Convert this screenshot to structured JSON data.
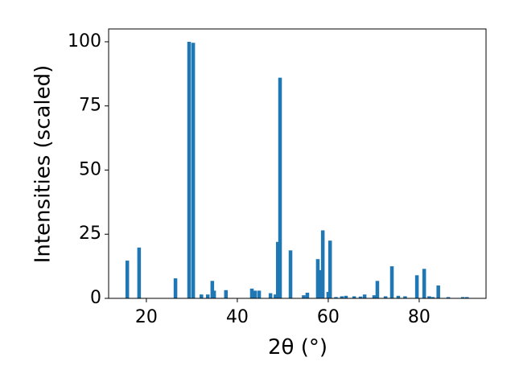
{
  "chart_data": {
    "type": "bar",
    "xlabel": "2θ (°)",
    "ylabel": "Intensities (scaled)",
    "color": "#1f77b4",
    "x": [
      15.8,
      18.4,
      26.4,
      29.4,
      30.3,
      32.1,
      33.5,
      34.5,
      34.9,
      37.5,
      43.2,
      43.9,
      44.8,
      47.3,
      48.4,
      48.9,
      49.4,
      51.7,
      54.6,
      55.4,
      57.7,
      58.2,
      58.8,
      60.0,
      60.4,
      61.7,
      63.0,
      63.9,
      65.7,
      67.1,
      68.0,
      70.1,
      70.8,
      72.6,
      74.0,
      75.4,
      76.9,
      79.5,
      81.1,
      82.2,
      83.0,
      84.2,
      86.4,
      89.6,
      90.5
    ],
    "values": [
      14.7,
      19.8,
      7.8,
      100,
      99.6,
      1.5,
      1.5,
      6.8,
      3.0,
      3.2,
      3.8,
      3.0,
      3.0,
      2.0,
      1.5,
      22,
      86,
      18.7,
      1.2,
      2.2,
      15.3,
      11,
      26.5,
      2.5,
      22.5,
      0.5,
      0.8,
      1,
      0.8,
      0.7,
      1.5,
      1.2,
      6.8,
      0.8,
      12.5,
      1,
      0.8,
      9,
      11.5,
      0.8,
      0.5,
      5,
      0.5,
      0.5,
      0.5
    ],
    "xlim": [
      11.7,
      94.7
    ],
    "ylim": [
      0,
      105
    ],
    "xticks": [
      20,
      40,
      60,
      80
    ],
    "yticks": [
      0,
      25,
      50,
      75,
      100
    ]
  }
}
